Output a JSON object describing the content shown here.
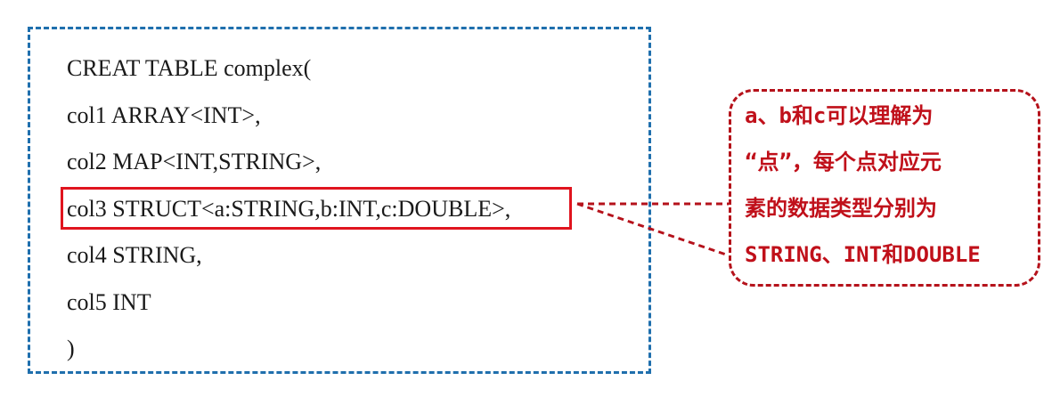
{
  "code": {
    "lines": [
      "CREAT TABLE complex(",
      "col1 ARRAY<INT>,",
      "col2 MAP<INT,STRING>,",
      "col3 STRUCT<a:STRING,b:INT,c:DOUBLE>,",
      "col4 STRING,",
      "col5 INT",
      ")"
    ]
  },
  "callout": {
    "lines": [
      "a、b和c可以理解为",
      "“点”，每个点对应元",
      "素的数据类型分别为",
      "STRING、INT和DOUBLE"
    ]
  },
  "colors": {
    "code_border": "#1f6fad",
    "highlight_border": "#e0141e",
    "callout_border": "#b5121b",
    "callout_text": "#c0101a"
  }
}
